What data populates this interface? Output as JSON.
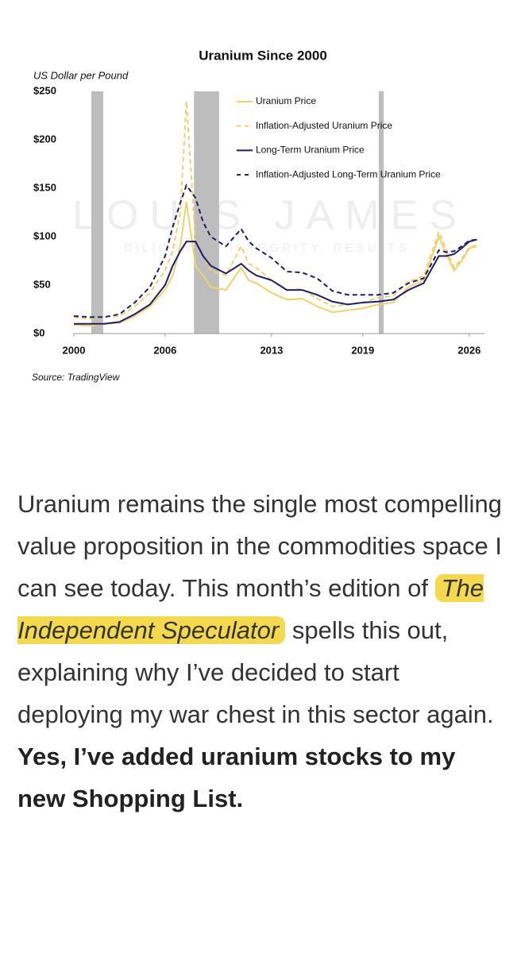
{
  "chart_data": {
    "type": "line",
    "title": "Uranium Since 2000",
    "y_label": "US Dollar per Pound",
    "source": "Source: TradingView",
    "watermark": "LOUIS JAMES",
    "watermark_tagline": "DILIGENCE. INTEGRITY. RESULTS.",
    "x": [
      2000,
      2001,
      2002,
      2003,
      2004,
      2005,
      2006,
      2006.5,
      2007,
      2007.4,
      2008,
      2008.5,
      2009,
      2010,
      2011,
      2011.5,
      2012,
      2013,
      2014,
      2015,
      2016,
      2017,
      2018,
      2019,
      2020,
      2021,
      2022,
      2023,
      2024,
      2024.5,
      2025,
      2025.5,
      2026,
      2026.5
    ],
    "series": [
      {
        "name": "Uranium Price",
        "color": "#f2d16b",
        "dash": false,
        "values": [
          9,
          8,
          10,
          11,
          18,
          28,
          45,
          60,
          90,
          136,
          70,
          60,
          48,
          45,
          68,
          55,
          52,
          42,
          35,
          36,
          28,
          22,
          24,
          26,
          30,
          32,
          48,
          55,
          100,
          82,
          65,
          75,
          88,
          90
        ]
      },
      {
        "name": "Inflation-Adjusted Uranium Price",
        "color": "#f2d16b",
        "dash": true,
        "values": [
          17,
          15,
          17,
          18,
          28,
          42,
          65,
          85,
          125,
          240,
          95,
          80,
          65,
          60,
          90,
          72,
          68,
          55,
          45,
          46,
          36,
          28,
          30,
          32,
          37,
          39,
          54,
          59,
          105,
          86,
          68,
          77,
          89,
          91
        ]
      },
      {
        "name": "Long-Term Uranium Price",
        "color": "#1b1f6b",
        "dash": false,
        "values": [
          10,
          10,
          10,
          12,
          20,
          30,
          50,
          70,
          85,
          95,
          95,
          80,
          70,
          62,
          72,
          65,
          60,
          55,
          45,
          45,
          40,
          33,
          30,
          32,
          33,
          35,
          45,
          52,
          80,
          80,
          82,
          88,
          95,
          97
        ]
      },
      {
        "name": "Inflation-Adjusted Long-Term Uranium Price",
        "color": "#1b1f6b",
        "dash": true,
        "values": [
          18,
          17,
          17,
          20,
          32,
          48,
          80,
          110,
          135,
          153,
          140,
          115,
          100,
          90,
          108,
          95,
          88,
          78,
          64,
          63,
          57,
          44,
          40,
          40,
          40,
          42,
          52,
          57,
          86,
          84,
          85,
          90,
          96,
          97
        ]
      }
    ],
    "shaded_periods": [
      [
        2001.15,
        2001.93
      ],
      [
        2007.9,
        2009.55
      ],
      [
        2020.05,
        2020.37
      ]
    ],
    "shade_color": "#bdbdbd",
    "xlim": [
      2000,
      2027
    ],
    "xticks": [
      2000,
      2006,
      2013,
      2019,
      2026
    ],
    "ylim": [
      0,
      250
    ],
    "yticks": [
      {
        "value": 0,
        "label": "$0"
      },
      {
        "value": 50,
        "label": "$50"
      },
      {
        "value": 100,
        "label": "$100"
      },
      {
        "value": 150,
        "label": "$150"
      },
      {
        "value": 200,
        "label": "$200"
      },
      {
        "value": 250,
        "label": "$250"
      }
    ],
    "grid": false
  },
  "article": {
    "parts": [
      "Uranium remains the single most compelling value proposition in the commodities space I can see today. This month’s edition of ",
      "The Independent Speculator",
      " spells this out, explaining why I’ve decided to start deploying my war chest in this sector again. ",
      "Yes, I’ve added uranium stocks to my new Shopping List."
    ]
  }
}
